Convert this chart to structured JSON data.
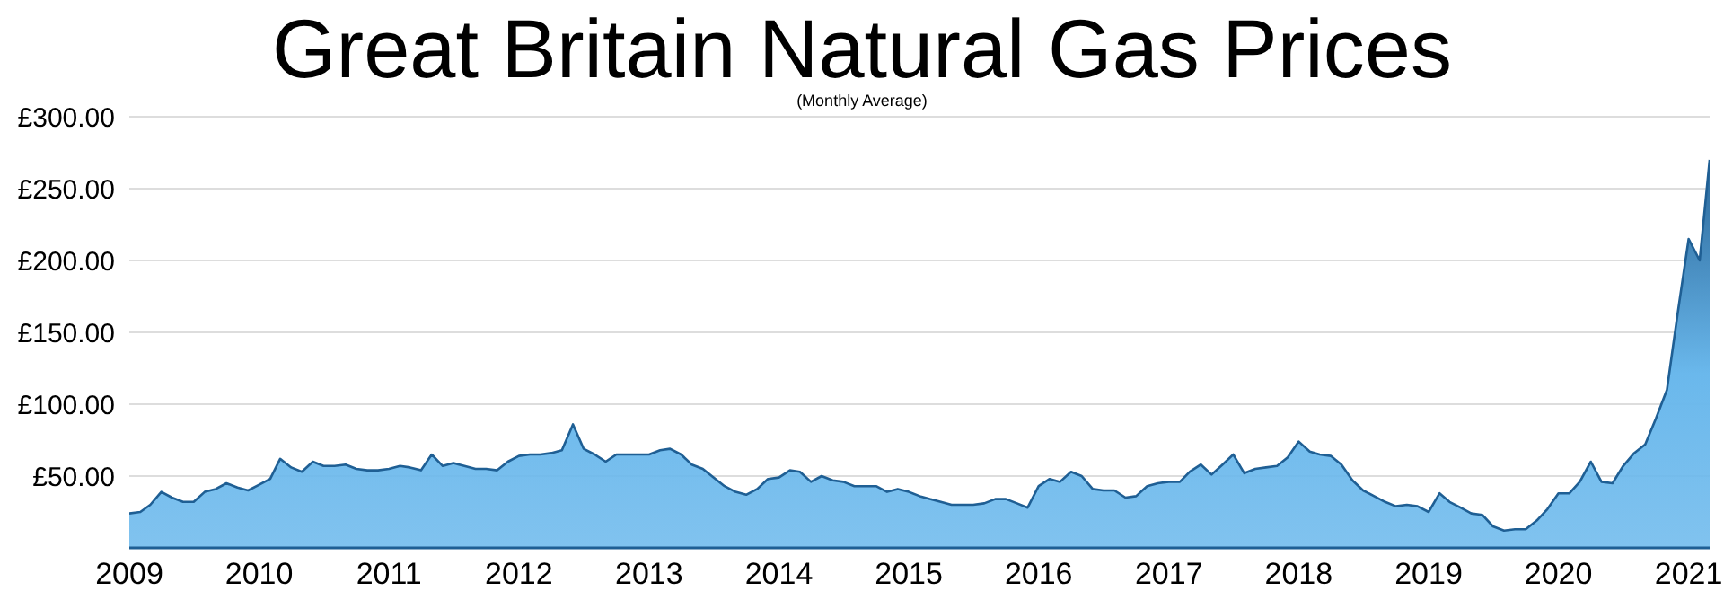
{
  "chart_data": {
    "type": "area",
    "title": "Great Britain Natural Gas Prices",
    "subtitle": "(Monthly Average)",
    "x": [
      "2009-01",
      "2009-02",
      "2009-03",
      "2009-04",
      "2009-05",
      "2009-06",
      "2009-07",
      "2009-08",
      "2009-09",
      "2009-10",
      "2009-11",
      "2009-12",
      "2010-01",
      "2010-02",
      "2010-03",
      "2010-04",
      "2010-05",
      "2010-06",
      "2010-07",
      "2010-08",
      "2010-09",
      "2010-10",
      "2010-11",
      "2010-12",
      "2011-01",
      "2011-02",
      "2011-03",
      "2011-04",
      "2011-05",
      "2011-06",
      "2011-07",
      "2011-08",
      "2011-09",
      "2011-10",
      "2011-11",
      "2011-12",
      "2012-01",
      "2012-02",
      "2012-03",
      "2012-04",
      "2012-05",
      "2012-06",
      "2012-07",
      "2012-08",
      "2012-09",
      "2012-10",
      "2012-11",
      "2012-12",
      "2013-01",
      "2013-02",
      "2013-03",
      "2013-04",
      "2013-05",
      "2013-06",
      "2013-07",
      "2013-08",
      "2013-09",
      "2013-10",
      "2013-11",
      "2013-12",
      "2014-01",
      "2014-02",
      "2014-03",
      "2014-04",
      "2014-05",
      "2014-06",
      "2014-07",
      "2014-08",
      "2014-09",
      "2014-10",
      "2014-11",
      "2014-12",
      "2015-01",
      "2015-02",
      "2015-03",
      "2015-04",
      "2015-05",
      "2015-06",
      "2015-07",
      "2015-08",
      "2015-09",
      "2015-10",
      "2015-11",
      "2015-12",
      "2016-01",
      "2016-02",
      "2016-03",
      "2016-04",
      "2016-05",
      "2016-06",
      "2016-07",
      "2016-08",
      "2016-09",
      "2016-10",
      "2016-11",
      "2016-12",
      "2017-01",
      "2017-02",
      "2017-03",
      "2017-04",
      "2017-05",
      "2017-06",
      "2017-07",
      "2017-08",
      "2017-09",
      "2017-10",
      "2017-11",
      "2017-12",
      "2018-01",
      "2018-02",
      "2018-03",
      "2018-04",
      "2018-05",
      "2018-06",
      "2018-07",
      "2018-08",
      "2018-09",
      "2018-10",
      "2018-11",
      "2018-12",
      "2019-01",
      "2019-02",
      "2019-03",
      "2019-04",
      "2019-05",
      "2019-06",
      "2019-07",
      "2019-08",
      "2019-09",
      "2019-10",
      "2019-11",
      "2019-12",
      "2020-01",
      "2020-02",
      "2020-03",
      "2020-04",
      "2020-05",
      "2020-06",
      "2020-07",
      "2020-08",
      "2020-09",
      "2020-10",
      "2020-11",
      "2020-12",
      "2021-01",
      "2021-02",
      "2021-03"
    ],
    "series": [
      {
        "color": "#6ab8ec",
        "values": [
          24,
          25,
          30,
          39,
          35,
          32,
          32,
          39,
          41,
          45,
          42,
          40,
          44,
          48,
          62,
          56,
          53,
          60,
          57,
          57,
          58,
          55,
          54,
          54,
          55,
          57,
          56,
          54,
          65,
          57,
          59,
          57,
          55,
          55,
          54,
          60,
          64,
          65,
          65,
          66,
          68,
          86,
          69,
          65,
          60,
          65,
          65,
          65,
          65,
          68,
          69,
          65,
          58,
          55,
          49,
          43,
          39,
          37,
          41,
          48,
          49,
          54,
          53,
          46,
          50,
          47,
          46,
          43,
          43,
          43,
          39,
          41,
          39,
          36,
          34,
          32,
          30,
          30,
          30,
          31,
          34,
          34,
          31,
          28,
          43,
          48,
          46,
          53,
          50,
          41,
          40,
          40,
          35,
          36,
          43,
          45,
          46,
          46,
          53,
          58,
          51,
          58,
          65,
          52,
          55,
          56,
          57,
          63,
          74,
          67,
          65,
          64,
          58,
          47,
          40,
          36,
          32,
          29,
          30,
          29,
          25,
          38,
          32,
          28,
          24,
          23,
          15,
          12,
          13,
          13,
          19,
          27,
          38,
          38,
          46,
          60,
          46,
          45,
          57,
          66,
          72,
          90,
          110,
          163,
          215,
          200,
          270
        ]
      }
    ],
    "xlim": [
      "2009-01",
      "2021-03"
    ],
    "xticks": [
      {
        "value": "2009",
        "label": "2009"
      },
      {
        "value": "2010",
        "label": "2010"
      },
      {
        "value": "2011",
        "label": "2011"
      },
      {
        "value": "2012",
        "label": "2012"
      },
      {
        "value": "2013",
        "label": "2013"
      },
      {
        "value": "2014",
        "label": "2014"
      },
      {
        "value": "2015",
        "label": "2015"
      },
      {
        "value": "2016",
        "label": "2016"
      },
      {
        "value": "2017",
        "label": "2017"
      },
      {
        "value": "2018",
        "label": "2018"
      },
      {
        "value": "2019",
        "label": "2019"
      },
      {
        "value": "2020",
        "label": "2020"
      },
      {
        "value": "2021",
        "label": "2021"
      }
    ],
    "ylim": [
      0,
      300
    ],
    "yticks": [
      {
        "value": 50,
        "label": "£50.00"
      },
      {
        "value": 100,
        "label": "£100.00"
      },
      {
        "value": 150,
        "label": "£150.00"
      },
      {
        "value": 200,
        "label": "£200.00"
      },
      {
        "value": 250,
        "label": "£250.00"
      },
      {
        "value": 300,
        "label": "£300.00"
      }
    ],
    "grid": "y",
    "legend": false
  }
}
